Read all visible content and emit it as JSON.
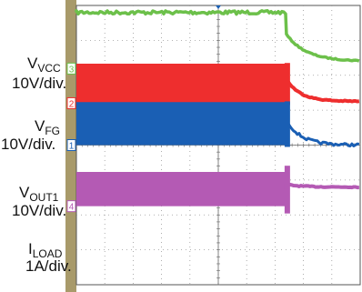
{
  "chart_data": {
    "type": "line",
    "title": "",
    "grid": true,
    "x_divisions": 10,
    "y_divisions": 8,
    "series": [
      {
        "name": "VCC",
        "name_main": "V",
        "name_sub": "VCC",
        "scale": "10V/div.",
        "marker": "3",
        "color": "#6cc04a",
        "style": "line",
        "level_before": 3.8,
        "level_after": 2.4,
        "noise": 0.05
      },
      {
        "name": "VFG",
        "name_main": "V",
        "name_sub": "FG",
        "scale": "10V/div.",
        "marker": "2",
        "color": "#ee2e2e",
        "style": "switching",
        "high_before": 2.3,
        "low_before": 1.2,
        "level_after": 1.25
      },
      {
        "name": "VOUT1",
        "name_main": "V",
        "name_sub": "OUT1",
        "scale": "10V/div.",
        "marker": "1",
        "color": "#1a5fb4",
        "style": "switching",
        "high_before": 1.2,
        "low_before": 0.0,
        "level_after": 0.0
      },
      {
        "name": "ILOAD",
        "name_main": "I",
        "name_sub": "LOAD",
        "scale": "1A/div.",
        "marker": "4",
        "color": "#b45ab4",
        "style": "switching",
        "high_before": -0.8,
        "low_before": -1.75,
        "level_after": -1.2
      }
    ],
    "event_division": 7.4
  }
}
